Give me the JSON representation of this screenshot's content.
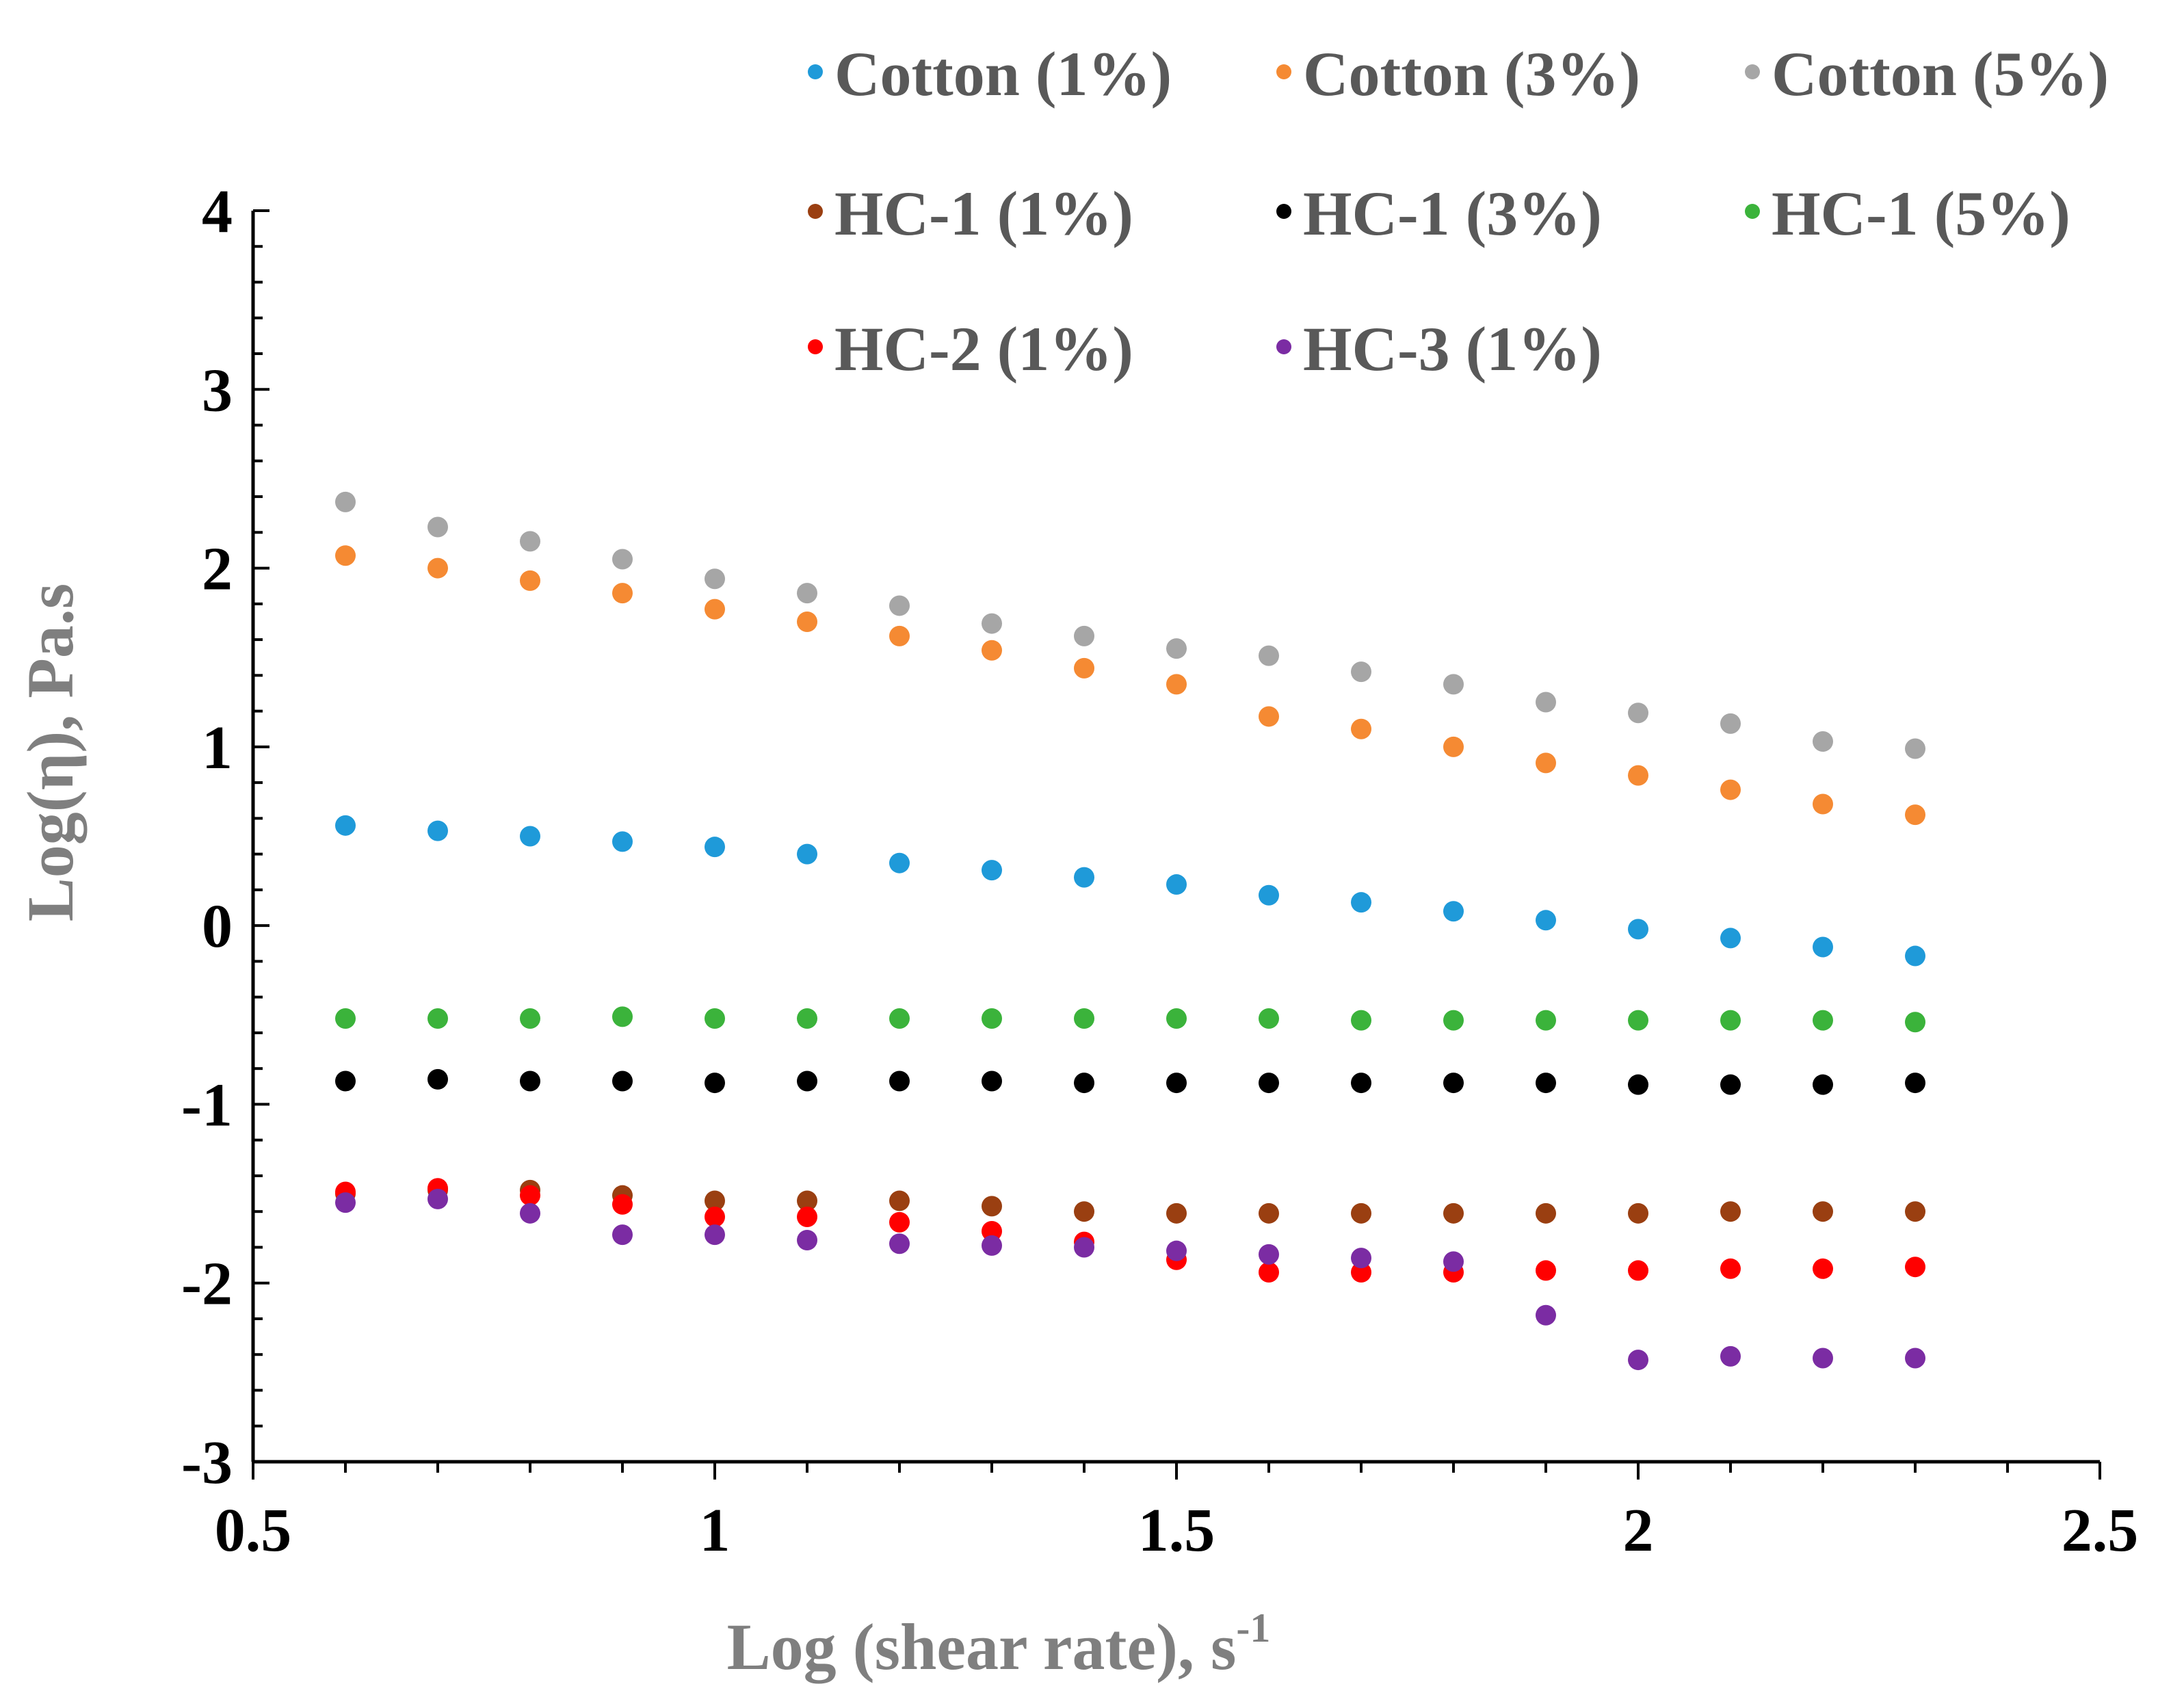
{
  "chart_data": {
    "type": "scatter",
    "title": "",
    "xlabel": "Log (shear rate), s",
    "xlabel_superscript": "-1",
    "ylabel": "Log(η), Pa.s",
    "xlim": [
      0.5,
      2.5
    ],
    "ylim": [
      -3,
      4
    ],
    "x_ticks": [
      "0.5",
      "1",
      "1.5",
      "2",
      "2.5"
    ],
    "y_ticks": [
      "-3",
      "-2",
      "-1",
      "0",
      "1",
      "2",
      "3",
      "4"
    ],
    "grid": false,
    "legend_position": "top",
    "x": [
      0.6,
      0.7,
      0.8,
      0.9,
      1.0,
      1.1,
      1.2,
      1.3,
      1.4,
      1.5,
      1.6,
      1.7,
      1.8,
      1.9,
      2.0,
      2.1,
      2.2,
      2.3
    ],
    "series": [
      {
        "name": "Cotton (1%)",
        "color": "#1f9ad9",
        "values": [
          0.56,
          0.53,
          0.5,
          0.47,
          0.44,
          0.4,
          0.35,
          0.31,
          0.27,
          0.23,
          0.17,
          0.13,
          0.08,
          0.03,
          -0.02,
          -0.07,
          -0.12,
          -0.17
        ]
      },
      {
        "name": "Cotton (3%)",
        "color": "#f58a33",
        "values": [
          2.07,
          2.0,
          1.93,
          1.86,
          1.77,
          1.7,
          1.62,
          1.54,
          1.44,
          1.35,
          1.17,
          1.1,
          1.0,
          0.91,
          0.84,
          0.76,
          0.68,
          0.62
        ]
      },
      {
        "name": "Cotton (5%)",
        "color": "#a6a6a6",
        "values": [
          2.37,
          2.23,
          2.15,
          2.05,
          1.94,
          1.86,
          1.79,
          1.69,
          1.62,
          1.55,
          1.51,
          1.42,
          1.35,
          1.25,
          1.19,
          1.13,
          1.03,
          0.99
        ]
      },
      {
        "name": "HC-1 (1%)",
        "color": "#9a3f11",
        "values": [
          -1.5,
          -1.48,
          -1.48,
          -1.51,
          -1.54,
          -1.54,
          -1.54,
          -1.57,
          -1.6,
          -1.61,
          -1.61,
          -1.61,
          -1.61,
          -1.61,
          -1.61,
          -1.6,
          -1.6,
          -1.6
        ]
      },
      {
        "name": "HC-1 (3%)",
        "color": "#000000",
        "values": [
          -0.87,
          -0.86,
          -0.87,
          -0.87,
          -0.88,
          -0.87,
          -0.87,
          -0.87,
          -0.88,
          -0.88,
          -0.88,
          -0.88,
          -0.88,
          -0.88,
          -0.89,
          -0.89,
          -0.89,
          -0.88
        ]
      },
      {
        "name": "HC-1 (5%)",
        "color": "#3bb33b",
        "values": [
          -0.52,
          -0.52,
          -0.52,
          -0.51,
          -0.52,
          -0.52,
          -0.52,
          -0.52,
          -0.52,
          -0.52,
          -0.52,
          -0.53,
          -0.53,
          -0.53,
          -0.53,
          -0.53,
          -0.53,
          -0.54
        ]
      },
      {
        "name": "HC-2 (1%)",
        "color": "#ff0000",
        "values": [
          -1.49,
          -1.47,
          -1.51,
          -1.56,
          -1.63,
          -1.63,
          -1.66,
          -1.71,
          -1.77,
          -1.87,
          -1.94,
          -1.94,
          -1.94,
          -1.93,
          -1.93,
          -1.92,
          -1.92,
          -1.91
        ]
      },
      {
        "name": "HC-3 (1%)",
        "color": "#7b2ca3",
        "values": [
          -1.55,
          -1.53,
          -1.61,
          -1.73,
          -1.73,
          -1.76,
          -1.78,
          -1.79,
          -1.8,
          -1.82,
          -1.84,
          -1.86,
          -1.88,
          -2.18,
          -2.43,
          -2.41,
          -2.42,
          -2.42
        ]
      }
    ]
  }
}
